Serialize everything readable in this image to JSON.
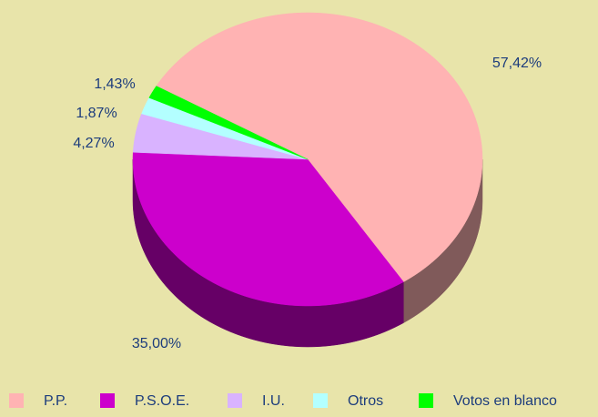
{
  "chart_data": {
    "type": "pie",
    "categories": [
      "P.P.",
      "P.S.O.E.",
      "I.U.",
      "Otros",
      "Votos en blanco"
    ],
    "values": [
      57.42,
      35.0,
      4.27,
      1.87,
      1.43
    ],
    "value_labels": [
      "57,42%",
      "35,00%",
      "4,27%",
      "1,87%",
      "1,43%"
    ],
    "colors": [
      "#ffb3b3",
      "#cc00cc",
      "#d9b3ff",
      "#b3ffff",
      "#00ff00"
    ]
  }
}
